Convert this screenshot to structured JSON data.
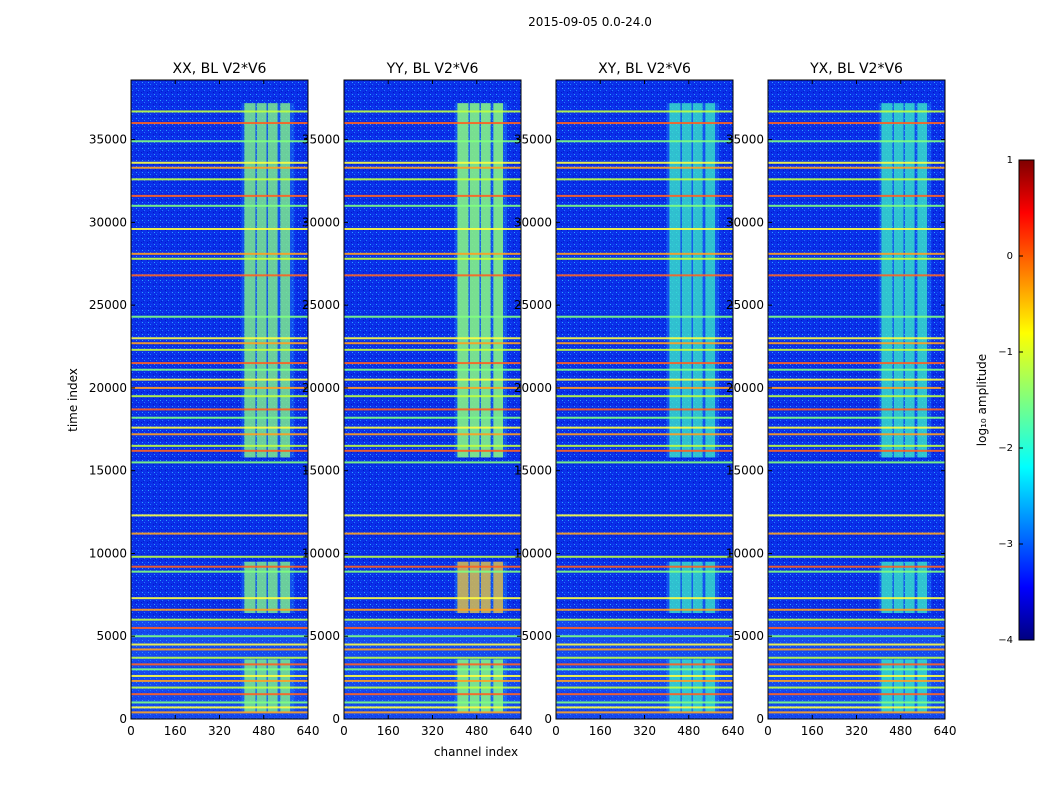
{
  "figure": {
    "title": "2015-09-05 0.0-24.0"
  },
  "chart_data": {
    "type": "heatmap",
    "title": "2015-09-05 0.0-24.0",
    "xlabel": "channel index",
    "ylabel": "time index",
    "xlim": [
      0,
      640
    ],
    "ylim": [
      0,
      38600
    ],
    "xticks": [
      0,
      160,
      320,
      480,
      640
    ],
    "yticks": [
      0,
      5000,
      10000,
      15000,
      20000,
      25000,
      30000,
      35000
    ],
    "panels": [
      {
        "title": "XX, BL V2*V6",
        "pol": "XX",
        "intensity": 0.75,
        "flag_rows": "dense"
      },
      {
        "title": "YY, BL V2*V6",
        "pol": "YY",
        "intensity": 1.0,
        "flag_rows": "dense"
      },
      {
        "title": "XY, BL V2*V6",
        "pol": "XY",
        "intensity": 0.55,
        "flag_rows": "dense"
      },
      {
        "title": "YX, BL V2*V6",
        "pol": "YX",
        "intensity": 0.6,
        "flag_rows": "dense"
      }
    ],
    "signal_channel_ranges": [
      [
        410,
        450
      ],
      [
        455,
        490
      ],
      [
        495,
        530
      ],
      [
        540,
        575
      ]
    ],
    "signal_time_ranges": [
      [
        400,
        3600
      ],
      [
        6400,
        9500
      ],
      [
        15800,
        37200
      ]
    ],
    "flagged_rows": [
      400,
      700,
      1000,
      1500,
      1900,
      2300,
      2600,
      3000,
      3300,
      3700,
      4200,
      4500,
      5000,
      5500,
      6000,
      6600,
      7300,
      8900,
      9200,
      9800,
      11200,
      12300,
      15500,
      16200,
      16500,
      17200,
      17600,
      18200,
      18700,
      19500,
      20000,
      20500,
      21100,
      21500,
      22300,
      22700,
      23000,
      24300,
      26800,
      27800,
      28100,
      29600,
      31000,
      31600,
      32600,
      33300,
      33600,
      34900,
      36000,
      36700
    ],
    "colorbar": {
      "label": "log₁₀ amplitude",
      "min": -4,
      "max": 1,
      "ticks": [
        1,
        0,
        -1,
        -2,
        -3,
        -4
      ],
      "tick_labels": [
        "1",
        "0",
        "−1",
        "−2",
        "−3",
        "−4"
      ],
      "colormap": "jet"
    }
  }
}
